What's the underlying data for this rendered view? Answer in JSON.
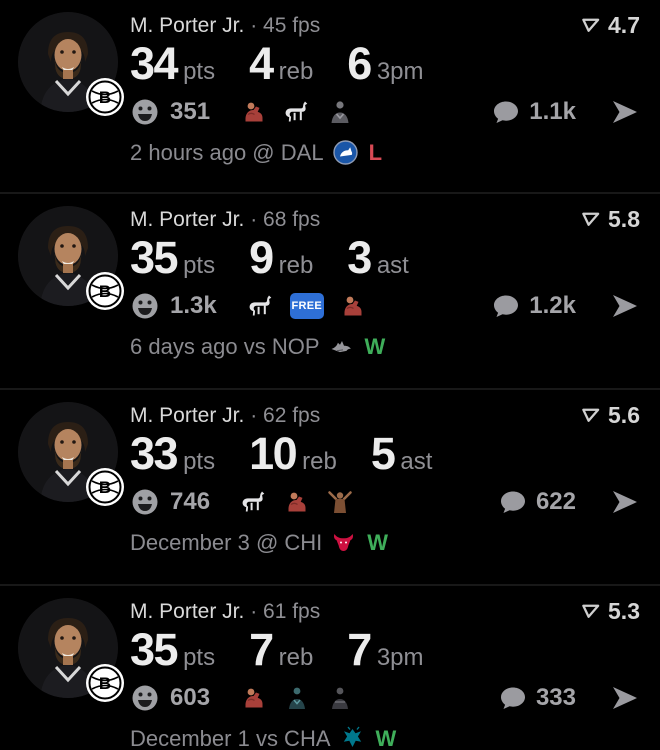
{
  "theme": {
    "background": "#000000",
    "divider": "#181818",
    "name_color": "#d9d9d9",
    "secondary_color": "#8f8f94",
    "stat_color": "#ececec",
    "count_color": "#a5a5a9",
    "win_color": "#3fae5a",
    "loss_color": "#d84a55",
    "free_badge_color": "#2e6fd6"
  },
  "icon_names": {
    "rating": "pennant-flag-icon",
    "reactions": "smiley-icon",
    "comments": "comment-bubble-icon",
    "share": "send-icon",
    "avatar_badge": "nets-basketball-logo"
  },
  "free_badge_label": "FREE",
  "cards": [
    {
      "player": "M. Porter Jr.",
      "meta": "· 45 fps",
      "rating": "4.7",
      "stats": [
        {
          "value": "34",
          "label": "pts"
        },
        {
          "value": "4",
          "label": "reb"
        },
        {
          "value": "6",
          "label": "3pm"
        }
      ],
      "reactions": {
        "count": "351",
        "emojis": [
          "flex-red",
          "goat",
          "player-gray"
        ]
      },
      "comments": "1.1k",
      "footer": {
        "when": "2 hours ago @ DAL",
        "team": "DAL",
        "result": "L"
      }
    },
    {
      "player": "M. Porter Jr.",
      "meta": "· 68 fps",
      "rating": "5.8",
      "stats": [
        {
          "value": "35",
          "label": "pts"
        },
        {
          "value": "9",
          "label": "reb"
        },
        {
          "value": "3",
          "label": "ast"
        }
      ],
      "reactions": {
        "count": "1.3k",
        "emojis": [
          "goat",
          "free",
          "flex-red"
        ]
      },
      "comments": "1.2k",
      "footer": {
        "when": "6 days ago vs NOP",
        "team": "NOP",
        "result": "W"
      }
    },
    {
      "player": "M. Porter Jr.",
      "meta": "· 62 fps",
      "rating": "5.6",
      "stats": [
        {
          "value": "33",
          "label": "pts"
        },
        {
          "value": "10",
          "label": "reb"
        },
        {
          "value": "5",
          "label": "ast"
        }
      ],
      "reactions": {
        "count": "746",
        "emojis": [
          "goat",
          "flex-red",
          "arms-up"
        ]
      },
      "comments": "622",
      "footer": {
        "when": "December 3 @ CHI",
        "team": "CHI",
        "result": "W"
      }
    },
    {
      "player": "M. Porter Jr.",
      "meta": "· 61 fps",
      "rating": "5.3",
      "stats": [
        {
          "value": "35",
          "label": "pts"
        },
        {
          "value": "7",
          "label": "reb"
        },
        {
          "value": "7",
          "label": "3pm"
        }
      ],
      "reactions": {
        "count": "603",
        "emojis": [
          "flex-red",
          "player-teal",
          "player-dark"
        ]
      },
      "comments": "333",
      "footer": {
        "when": "December 1 vs CHA",
        "team": "CHA",
        "result": "W"
      }
    }
  ]
}
